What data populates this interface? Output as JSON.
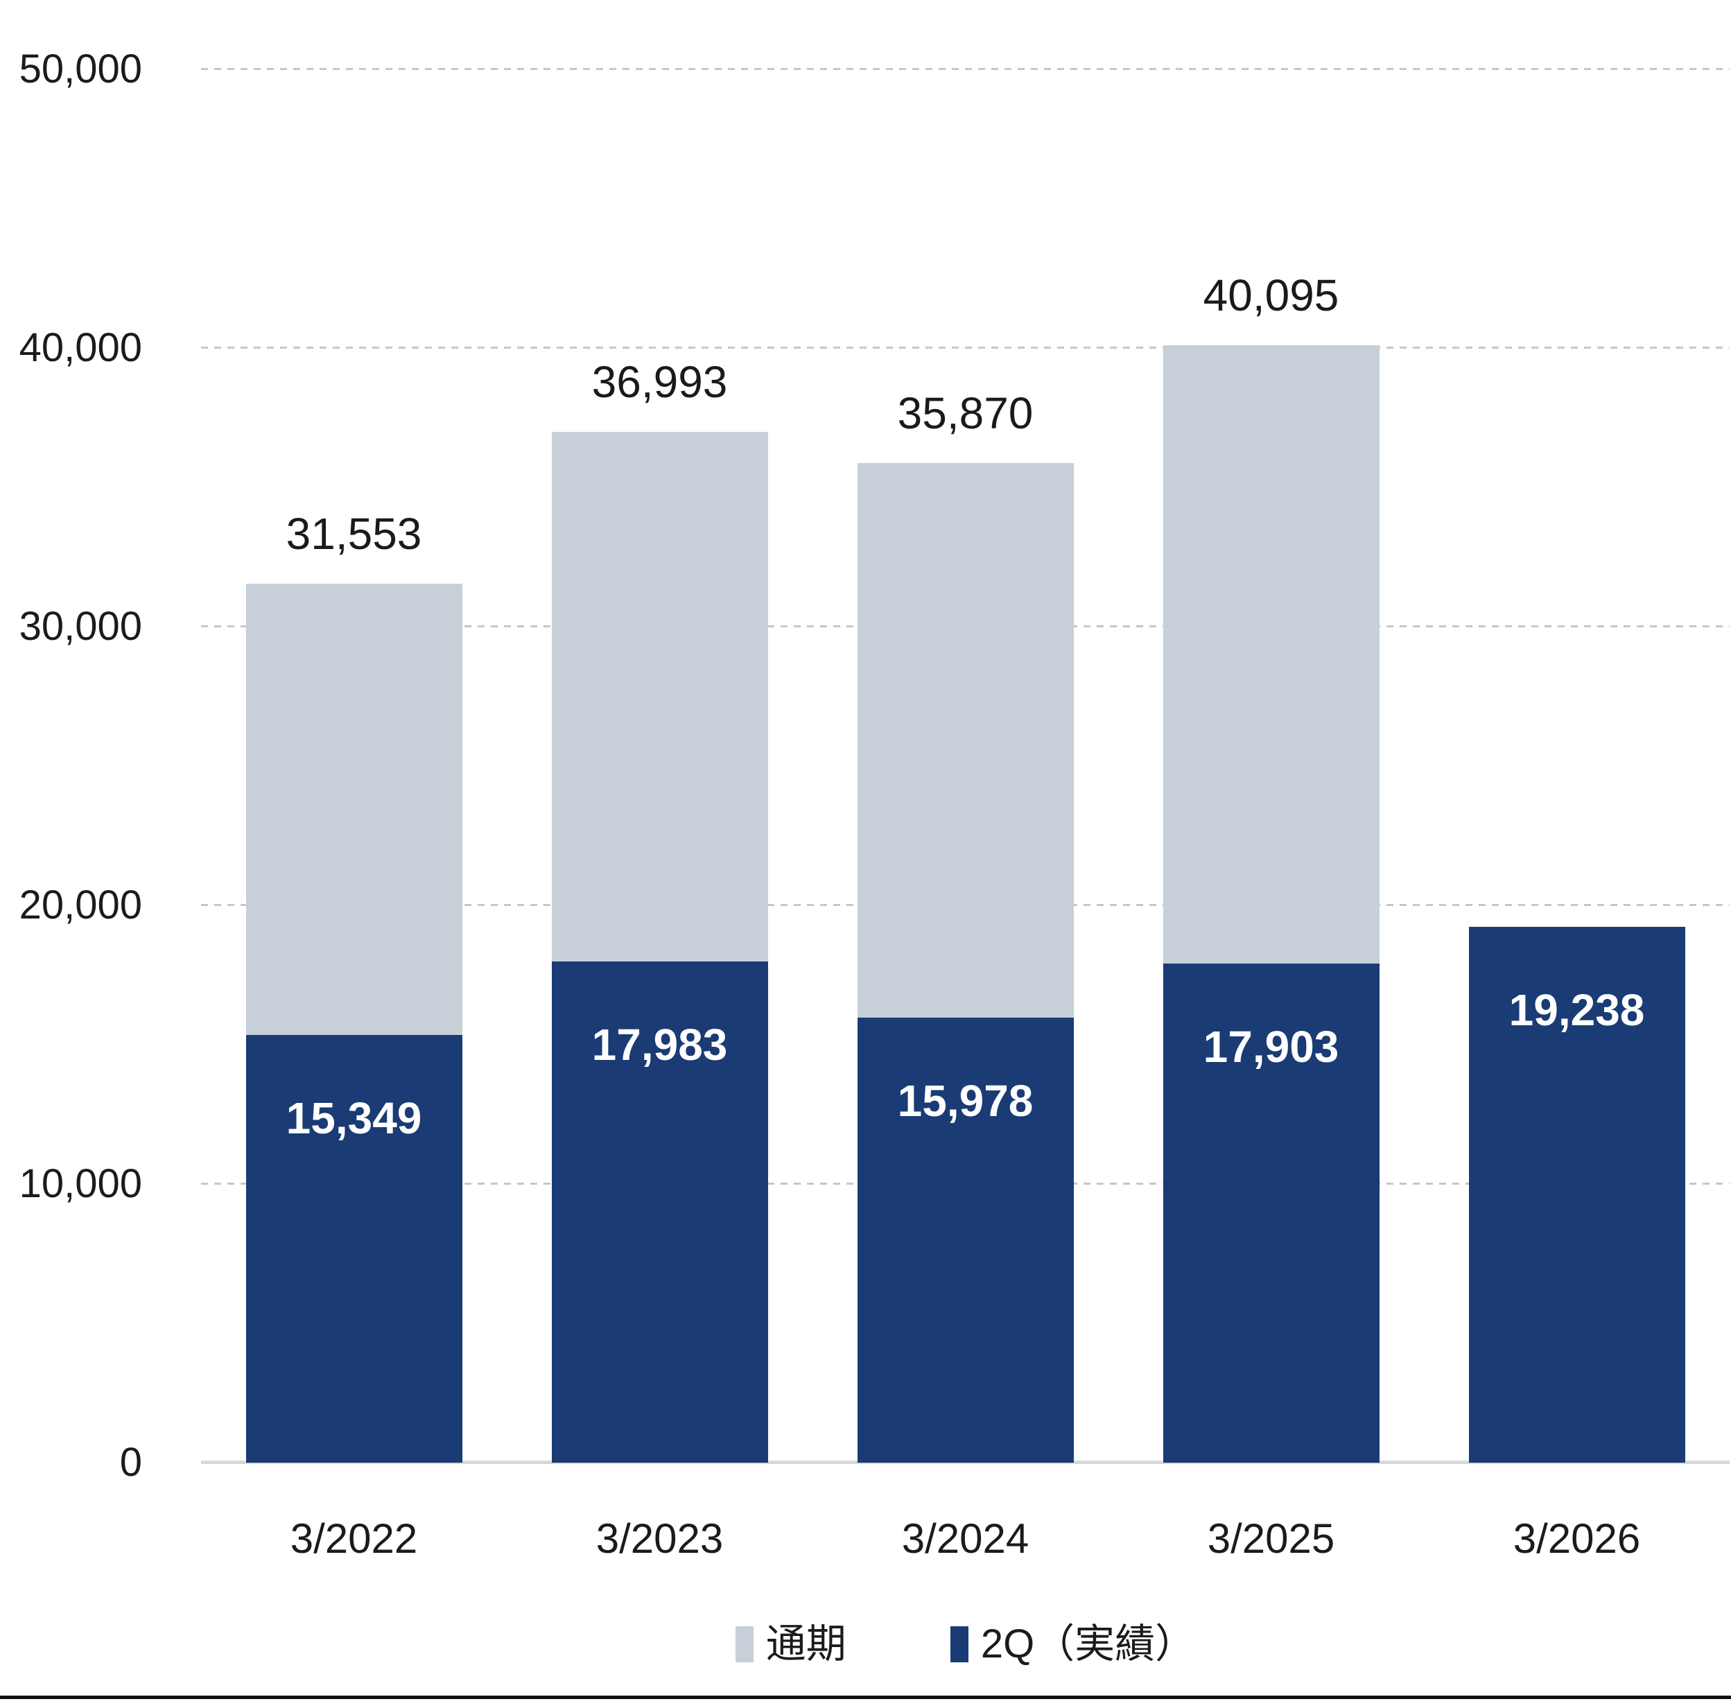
{
  "chart_data": {
    "type": "bar",
    "title": "",
    "xlabel": "",
    "ylabel": "",
    "categories": [
      "3/2022",
      "3/2023",
      "3/2024",
      "3/2025",
      "3/2026"
    ],
    "series": [
      {
        "name": "通期",
        "color": "#c7d0d8",
        "values": [
          31553,
          36993,
          35870,
          40095,
          null
        ],
        "labels": [
          "31,553",
          "36,993",
          "35,870",
          "40,095",
          ""
        ]
      },
      {
        "name": "2Q（実績）",
        "color": "#1a3b74",
        "values": [
          15349,
          17983,
          15978,
          17903,
          19238
        ],
        "labels": [
          "15,349",
          "17,983",
          "15,978",
          "17,903",
          "19,238"
        ]
      }
    ],
    "ylim": [
      0,
      50000
    ],
    "ytick_interval": 10000,
    "yticks": [
      {
        "value": 0,
        "label": "0"
      },
      {
        "value": 10000,
        "label": "10,000"
      },
      {
        "value": 20000,
        "label": "20,000"
      },
      {
        "value": 30000,
        "label": "30,000"
      },
      {
        "value": 40000,
        "label": "40,000"
      },
      {
        "value": 50000,
        "label": "50,000"
      }
    ],
    "grid": "horizontal-dashed",
    "legend_position": "bottom-center",
    "bar_style": "overlapped (2Q actual drawn in front of full-year total)"
  },
  "legend": {
    "items": [
      {
        "label": "通期",
        "color": "#c7d0d8"
      },
      {
        "label": "2Q（実績）",
        "color": "#1a3b74"
      }
    ]
  },
  "colors": {
    "full_year_bar": "#c7d0d8",
    "q2_bar": "#1a3b74",
    "gridline": "#c7c7c7",
    "zero_axis": "#d8d8d8",
    "text": "#1b1b1b",
    "q2_label_text": "#ffffff",
    "bottom_rule": "#101010"
  }
}
